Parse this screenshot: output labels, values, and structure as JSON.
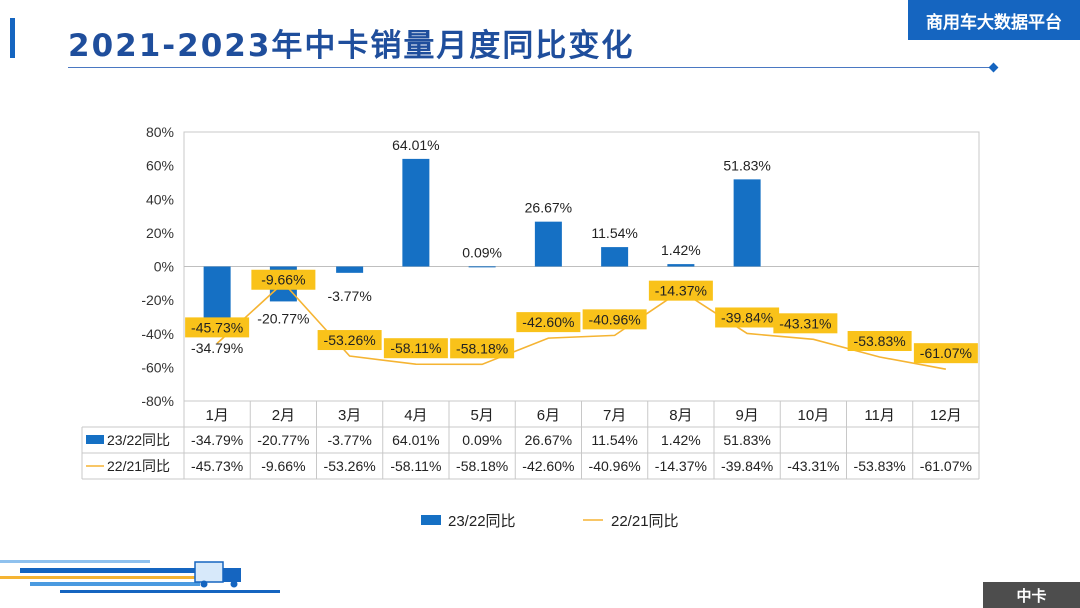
{
  "header": {
    "title": "2021-2023年中卡销量月度同比变化",
    "brand": "商用车大数据平台",
    "tag": "中卡"
  },
  "colors": {
    "bar": "#1570c4",
    "line": "#f5b433",
    "label_bg": "#f9c21a",
    "title": "#1f4e9c",
    "brand_bg": "#1565c0"
  },
  "chart_data": {
    "type": "bar",
    "categories": [
      "1月",
      "2月",
      "3月",
      "4月",
      "5月",
      "6月",
      "7月",
      "8月",
      "9月",
      "10月",
      "11月",
      "12月"
    ],
    "series": [
      {
        "name": "23/22同比",
        "type": "bar",
        "values": [
          -34.79,
          -20.77,
          -3.77,
          64.01,
          0.09,
          26.67,
          11.54,
          1.42,
          51.83,
          null,
          null,
          null
        ],
        "labels": [
          "-34.79%",
          "-20.77%",
          "-3.77%",
          "64.01%",
          "0.09%",
          "26.67%",
          "11.54%",
          "1.42%",
          "51.83%",
          "",
          "",
          ""
        ]
      },
      {
        "name": "22/21同比",
        "type": "line",
        "values": [
          -45.73,
          -9.66,
          -53.26,
          -58.11,
          -58.18,
          -42.6,
          -40.96,
          -14.37,
          -39.84,
          -43.31,
          -53.83,
          -61.07
        ],
        "labels": [
          "-45.73%",
          "-9.66%",
          "-53.26%",
          "-58.11%",
          "-58.18%",
          "-42.60%",
          "-40.96%",
          "-14.37%",
          "-39.84%",
          "-43.31%",
          "-53.83%",
          "-61.07%"
        ]
      }
    ],
    "ylim": [
      -80,
      80
    ],
    "yticks": [
      "-80%",
      "-60%",
      "-40%",
      "-20%",
      "0%",
      "20%",
      "40%",
      "60%",
      "80%"
    ],
    "grid": false,
    "legend": "bottom",
    "data_table": true
  }
}
